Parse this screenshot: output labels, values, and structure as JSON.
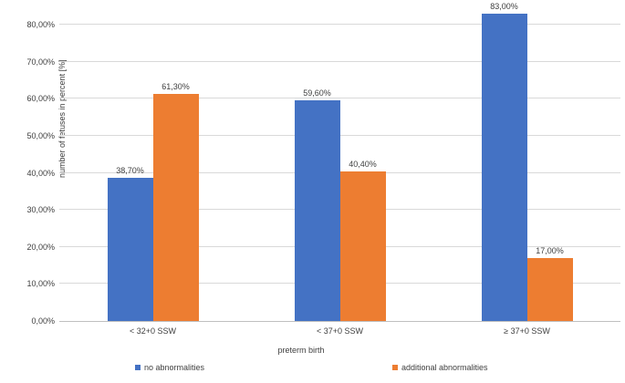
{
  "chart_data": {
    "type": "bar",
    "title": "",
    "xlabel": "preterm birth",
    "ylabel": "number of fetuses in percent [%]",
    "categories": [
      "< 32+0 SSW",
      "< 37+0 SSW",
      "≥ 37+0 SSW"
    ],
    "series": [
      {
        "name": "no abnormalities",
        "color": "#4472C4",
        "values": [
          38.7,
          59.6,
          83.0
        ],
        "labels": [
          "38,70%",
          "59,60%",
          "83,00%"
        ]
      },
      {
        "name": "additional abnormalities",
        "color": "#ED7D31",
        "values": [
          61.3,
          40.4,
          17.0
        ],
        "labels": [
          "61,30%",
          "40,40%",
          "17,00%"
        ]
      }
    ],
    "y_tick_values": [
      0,
      10,
      20,
      30,
      40,
      50,
      60,
      70,
      80
    ],
    "y_tick_labels": [
      "0,00%",
      "10,00%",
      "20,00%",
      "30,00%",
      "40,00%",
      "50,00%",
      "60,00%",
      "70,00%",
      "80,00%"
    ],
    "ylim": [
      0,
      86.6
    ],
    "grid": true,
    "legend_position": "bottom",
    "gridline_color": "#d9d9d9",
    "axis_line_color": "#bfbfbf",
    "text_color": "#404040"
  }
}
